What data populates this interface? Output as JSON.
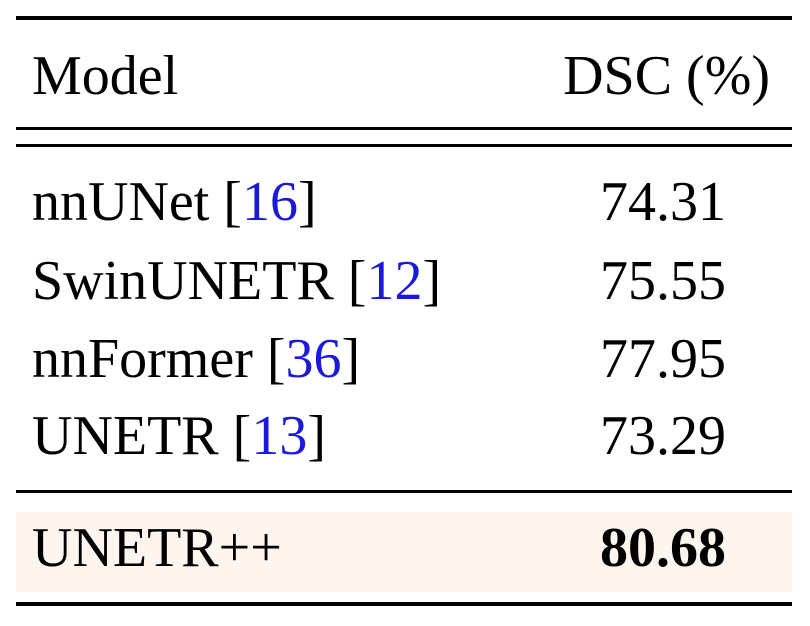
{
  "table": {
    "header": {
      "model": "Model",
      "metric": "DSC (%)"
    },
    "rows": [
      {
        "model": "nnUNet",
        "cite_open": " [",
        "cite": "16",
        "cite_close": "]",
        "value": "74.31"
      },
      {
        "model": "SwinUNETR",
        "cite_open": " [",
        "cite": "12",
        "cite_close": "]",
        "value": "75.55"
      },
      {
        "model": "nnFormer",
        "cite_open": " [",
        "cite": "36",
        "cite_close": "]",
        "value": "77.95"
      },
      {
        "model": "UNETR",
        "cite_open": " [",
        "cite": "13",
        "cite_close": "]",
        "value": "73.29"
      }
    ],
    "highlight": {
      "model": "UNETR++",
      "value": "80.68",
      "background": "#fdf5ee"
    },
    "citation_color": "#1a1ad8"
  }
}
